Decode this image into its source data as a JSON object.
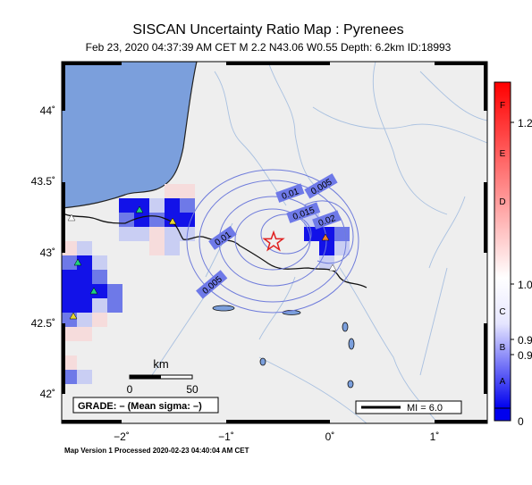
{
  "header": {
    "title": "SISCAN Uncertainty Ratio Map : Pyrenees",
    "subtitle": "Feb 23, 2020 04:37:39 AM CET   M 2.2   N43.06 W0.55   Depth: 6.2km   ID:18993"
  },
  "map": {
    "lon_ticks": [
      "−2˚",
      "−1˚",
      "0˚",
      "1˚"
    ],
    "lat_ticks": [
      "44˚",
      "43.5˚",
      "43˚",
      "42.5˚",
      "42˚"
    ],
    "contour_labels": [
      "0.005",
      "0.01",
      "0.015",
      "0.02",
      "0.01",
      "0.005"
    ],
    "scale": {
      "unit": "km",
      "left": "0",
      "right": "50"
    },
    "grade_text": "GRADE: – (Mean sigma: –)",
    "mi_legend": "MI = 6.0",
    "epicenter": {
      "lat": 43.06,
      "lon": -0.55
    },
    "colors": {
      "sea": "#7b9fdc",
      "land": "#eeeeee",
      "rivers": "#a8c0e0",
      "contours": "#6f7cdb",
      "high_cells": "#1212e8",
      "mid_cells": "#6e79e8",
      "low_cells": "#c9cef3",
      "pink_cells": "#f6dcdc",
      "epicenter": "#e02020"
    }
  },
  "colorbar": {
    "top_label": "1.2",
    "labels": [
      "1.0",
      "0.9",
      "0.9",
      "0"
    ],
    "grades": [
      "F",
      "E",
      "D",
      "C",
      "B",
      "A"
    ],
    "colors": {
      "top": "#ff0000",
      "mid": "#ffffff",
      "bottom": "#0000ee"
    }
  },
  "footer": "Map Version 1 Processed 2020-02-23 04:40:04 AM CET"
}
